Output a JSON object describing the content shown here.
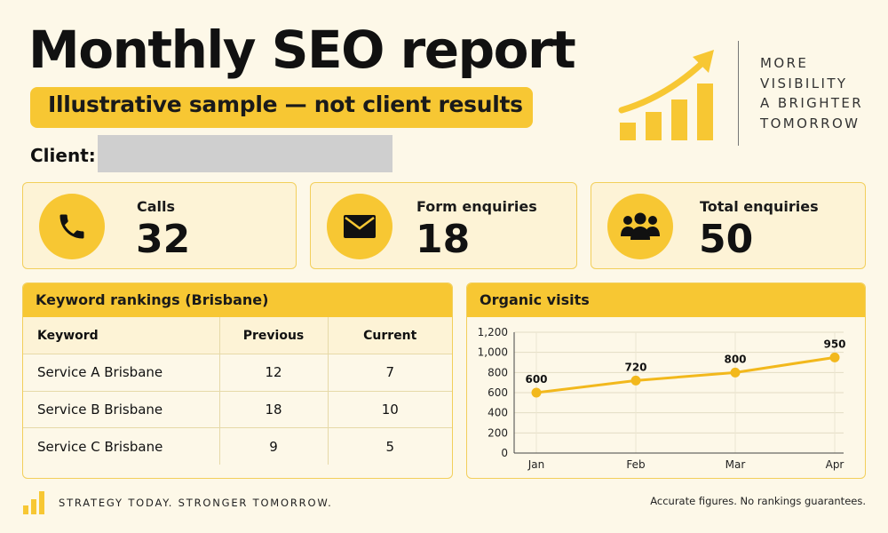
{
  "title": "Monthly SEO report",
  "subtitle": "Illustrative sample — not client results",
  "client": {
    "label": "Client:",
    "value": ""
  },
  "logo": {
    "lines": [
      "MORE",
      "VISIBILITY",
      "A BRIGHTER",
      "TOMORROW"
    ],
    "icon": "growth-bars-arrow"
  },
  "kpis": [
    {
      "label": "Calls",
      "value": "32",
      "icon": "phone-icon"
    },
    {
      "label": "Form enquiries",
      "value": "18",
      "icon": "envelope-icon"
    },
    {
      "label": "Total enquiries",
      "value": "50",
      "icon": "people-icon"
    }
  ],
  "rankings": {
    "title": "Keyword rankings (Brisbane)",
    "columns": [
      "Keyword",
      "Previous",
      "Current"
    ],
    "rows": [
      [
        "Service A Brisbane",
        "12",
        "7"
      ],
      [
        "Service B Brisbane",
        "18",
        "10"
      ],
      [
        "Service C Brisbane",
        "9",
        "5"
      ]
    ]
  },
  "chart_data": {
    "type": "line",
    "title": "Organic visits",
    "categories": [
      "Jan",
      "Feb",
      "Mar",
      "Apr"
    ],
    "series": [
      {
        "values": [
          600,
          720,
          800,
          950
        ]
      }
    ],
    "data_labels": [
      "600",
      "720",
      "800",
      "950"
    ],
    "ylim": [
      0,
      1200
    ],
    "yticks": [
      0,
      200,
      400,
      600,
      800,
      1000,
      1200
    ],
    "ytick_labels": [
      "0",
      "200",
      "400",
      "600",
      "800",
      "1,000",
      "1,200"
    ],
    "grid": true,
    "color": "#f2b81c"
  },
  "footer": {
    "left": "STRATEGY TODAY. STRONGER TOMORROW.",
    "right": "Accurate figures. No rankings guarantees."
  },
  "colors": {
    "accent": "#f7c733",
    "background": "#fdf8e8",
    "card": "#fdf3d6"
  }
}
